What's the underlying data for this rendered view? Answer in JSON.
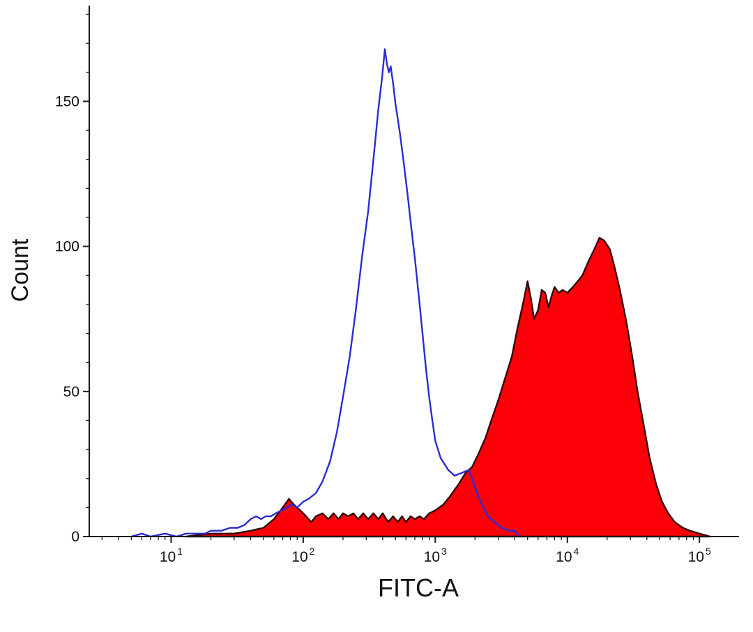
{
  "chart_data": {
    "type": "area",
    "title": "",
    "xlabel": "FITC-A",
    "ylabel": "Count",
    "x_scale": "log10",
    "xlim": [
      2.4,
      200000
    ],
    "ylim": [
      0,
      183
    ],
    "x_ticks": [
      10,
      100,
      1000,
      10000,
      100000
    ],
    "x_tick_base": "10",
    "x_tick_exponents": [
      "1",
      "2",
      "3",
      "4",
      "5"
    ],
    "y_ticks": [
      0,
      50,
      100,
      150
    ],
    "y_minor_step": 10,
    "grid": false,
    "legend": "none",
    "axis_color": "#1a1a1a",
    "series": [
      {
        "name": "stained-sample-filled-red",
        "type": "filled-area",
        "fill": "#fb0006",
        "color": "#330505",
        "points": [
          [
            13,
            0
          ],
          [
            20,
            1
          ],
          [
            30,
            1
          ],
          [
            40,
            2
          ],
          [
            50,
            3
          ],
          [
            60,
            6
          ],
          [
            70,
            10
          ],
          [
            78,
            13
          ],
          [
            85,
            11
          ],
          [
            95,
            9
          ],
          [
            105,
            7
          ],
          [
            115,
            5
          ],
          [
            125,
            7
          ],
          [
            140,
            8
          ],
          [
            155,
            6
          ],
          [
            170,
            8
          ],
          [
            185,
            6
          ],
          [
            200,
            8
          ],
          [
            220,
            7
          ],
          [
            240,
            8
          ],
          [
            260,
            6
          ],
          [
            285,
            8
          ],
          [
            310,
            6
          ],
          [
            340,
            8
          ],
          [
            370,
            6
          ],
          [
            400,
            8
          ],
          [
            440,
            5
          ],
          [
            480,
            7
          ],
          [
            520,
            5
          ],
          [
            560,
            7
          ],
          [
            600,
            5
          ],
          [
            650,
            7
          ],
          [
            700,
            6
          ],
          [
            760,
            7
          ],
          [
            820,
            6
          ],
          [
            900,
            8
          ],
          [
            1000,
            9
          ],
          [
            1150,
            11
          ],
          [
            1300,
            14
          ],
          [
            1500,
            18
          ],
          [
            1700,
            22
          ],
          [
            1900,
            24
          ],
          [
            2100,
            28
          ],
          [
            2400,
            34
          ],
          [
            2700,
            41
          ],
          [
            3000,
            47
          ],
          [
            3400,
            55
          ],
          [
            3800,
            62
          ],
          [
            4200,
            72
          ],
          [
            4600,
            80
          ],
          [
            5000,
            88
          ],
          [
            5300,
            82
          ],
          [
            5600,
            75
          ],
          [
            6000,
            78
          ],
          [
            6400,
            85
          ],
          [
            6800,
            84
          ],
          [
            7200,
            79
          ],
          [
            7600,
            83
          ],
          [
            8000,
            86
          ],
          [
            8600,
            84
          ],
          [
            9200,
            85
          ],
          [
            10000,
            84
          ],
          [
            11000,
            86
          ],
          [
            12000,
            88
          ],
          [
            13000,
            90
          ],
          [
            14500,
            95
          ],
          [
            16000,
            99
          ],
          [
            17500,
            103
          ],
          [
            19000,
            102
          ],
          [
            21000,
            99
          ],
          [
            23000,
            92
          ],
          [
            25000,
            85
          ],
          [
            28000,
            74
          ],
          [
            31000,
            62
          ],
          [
            34000,
            50
          ],
          [
            38000,
            38
          ],
          [
            42000,
            27
          ],
          [
            47000,
            18
          ],
          [
            52000,
            12
          ],
          [
            58000,
            8
          ],
          [
            65000,
            5
          ],
          [
            75000,
            3
          ],
          [
            85000,
            2
          ],
          [
            100000,
            1
          ],
          [
            120000,
            0
          ]
        ]
      },
      {
        "name": "unstained-control-open-blue",
        "type": "line",
        "fill": "none",
        "color": "#2b2bd5",
        "points": [
          [
            5,
            0
          ],
          [
            6,
            1
          ],
          [
            7,
            0
          ],
          [
            9,
            1
          ],
          [
            11,
            0
          ],
          [
            13,
            1
          ],
          [
            15,
            1
          ],
          [
            18,
            1
          ],
          [
            20,
            2
          ],
          [
            24,
            2
          ],
          [
            28,
            3
          ],
          [
            32,
            3
          ],
          [
            36,
            4
          ],
          [
            40,
            6
          ],
          [
            44,
            7
          ],
          [
            48,
            6
          ],
          [
            52,
            7
          ],
          [
            57,
            7
          ],
          [
            62,
            8
          ],
          [
            68,
            9
          ],
          [
            75,
            10
          ],
          [
            82,
            11
          ],
          [
            90,
            10
          ],
          [
            100,
            12
          ],
          [
            110,
            13
          ],
          [
            125,
            15
          ],
          [
            140,
            19
          ],
          [
            160,
            26
          ],
          [
            180,
            36
          ],
          [
            200,
            48
          ],
          [
            225,
            62
          ],
          [
            250,
            78
          ],
          [
            280,
            97
          ],
          [
            310,
            112
          ],
          [
            340,
            130
          ],
          [
            370,
            147
          ],
          [
            395,
            158
          ],
          [
            415,
            168
          ],
          [
            430,
            163
          ],
          [
            445,
            160
          ],
          [
            460,
            162
          ],
          [
            480,
            156
          ],
          [
            500,
            149
          ],
          [
            540,
            139
          ],
          [
            580,
            128
          ],
          [
            620,
            117
          ],
          [
            660,
            106
          ],
          [
            700,
            96
          ],
          [
            750,
            83
          ],
          [
            800,
            70
          ],
          [
            850,
            58
          ],
          [
            900,
            48
          ],
          [
            950,
            40
          ],
          [
            1000,
            33
          ],
          [
            1100,
            27
          ],
          [
            1250,
            23
          ],
          [
            1400,
            21
          ],
          [
            1600,
            22
          ],
          [
            1800,
            23
          ],
          [
            2000,
            17
          ],
          [
            2200,
            12
          ],
          [
            2500,
            7
          ],
          [
            2800,
            5
          ],
          [
            3200,
            3
          ],
          [
            3600,
            2
          ],
          [
            4000,
            2
          ],
          [
            4300,
            0
          ]
        ]
      }
    ]
  }
}
